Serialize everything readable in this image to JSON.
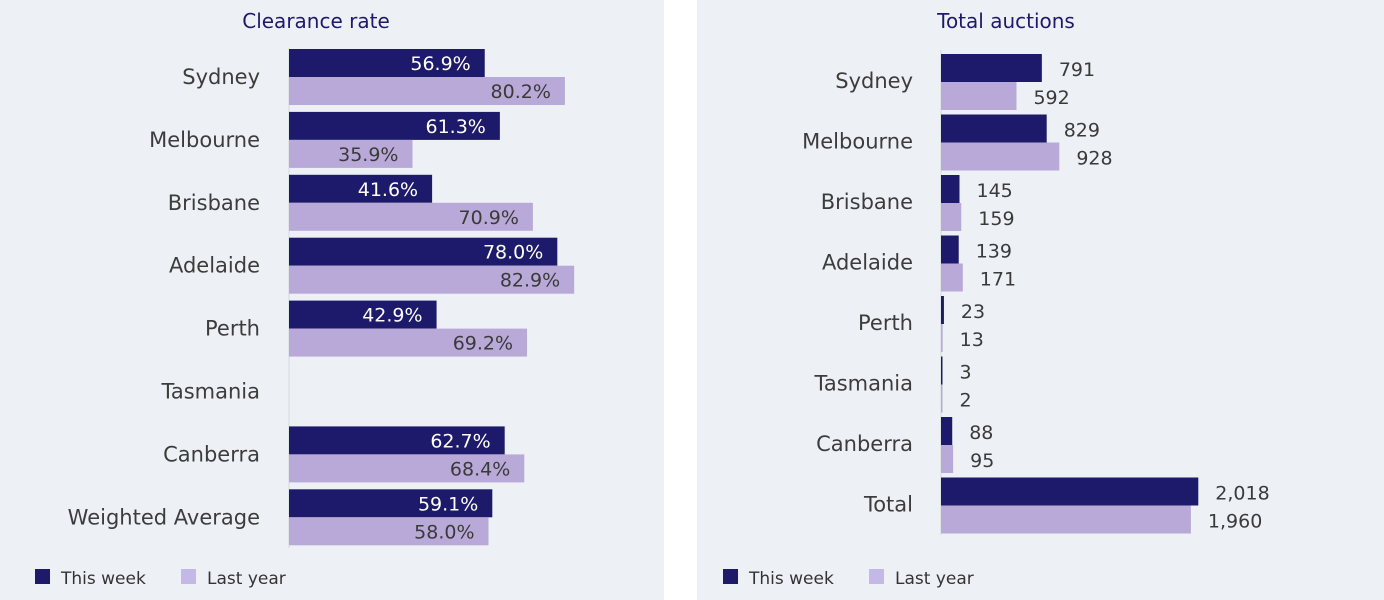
{
  "colors": {
    "this_week": "#1d1a6b",
    "last_year": "#b9a9d8",
    "panel_bg": "#edf1f5",
    "legend_last_year": "#c4b9e6"
  },
  "legend": {
    "this_week": "This week",
    "last_year": "Last year"
  },
  "chart_data": [
    {
      "type": "bar",
      "orientation": "horizontal",
      "title": "Clearance rate",
      "categories": [
        "Sydney",
        "Melbourne",
        "Brisbane",
        "Adelaide",
        "Perth",
        "Tasmania",
        "Canberra",
        "Weighted Average"
      ],
      "series": [
        {
          "name": "This week",
          "values": [
            56.9,
            61.3,
            41.6,
            78.0,
            42.9,
            null,
            62.7,
            59.1
          ],
          "labels": [
            "56.9%",
            "61.3%",
            "41.6%",
            "78.0%",
            "42.9%",
            "",
            "62.7%",
            "59.1%"
          ]
        },
        {
          "name": "Last year",
          "values": [
            80.2,
            35.9,
            70.9,
            82.9,
            69.2,
            null,
            68.4,
            58.0
          ],
          "labels": [
            "80.2%",
            "35.9%",
            "70.9%",
            "82.9%",
            "69.2%",
            "",
            "68.4%",
            "58.0%"
          ]
        }
      ],
      "xlim": [
        0,
        100
      ],
      "legend_position": "bottom-left",
      "grid": false
    },
    {
      "type": "bar",
      "orientation": "horizontal",
      "title": "Total auctions",
      "categories": [
        "Sydney",
        "Melbourne",
        "Brisbane",
        "Adelaide",
        "Perth",
        "Tasmania",
        "Canberra",
        "Total"
      ],
      "series": [
        {
          "name": "This week",
          "values": [
            791,
            829,
            145,
            139,
            23,
            3,
            88,
            2018
          ],
          "labels": [
            "791",
            "829",
            "145",
            "139",
            "23",
            "3",
            "88",
            "2,018"
          ]
        },
        {
          "name": "Last year",
          "values": [
            592,
            928,
            159,
            171,
            13,
            2,
            95,
            1960
          ],
          "labels": [
            "592",
            "928",
            "159",
            "171",
            "13",
            "2",
            "95",
            "1,960"
          ]
        }
      ],
      "xlim": [
        0,
        2600
      ],
      "legend_position": "bottom-left",
      "grid": false
    }
  ]
}
